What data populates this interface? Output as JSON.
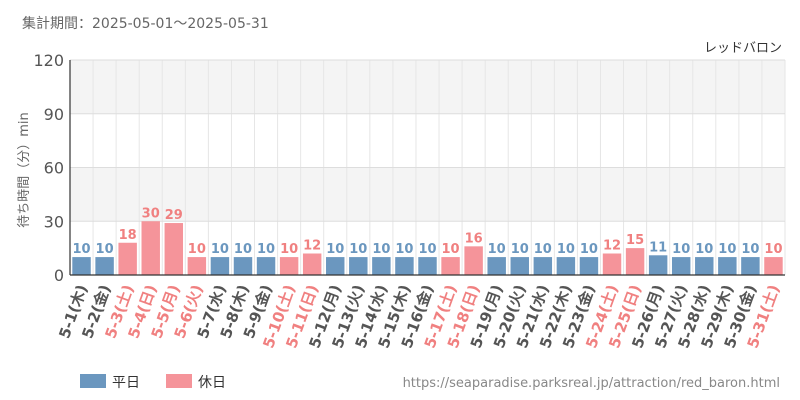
{
  "header": {
    "period_label": "集計期間：2025-05-01～2025-05-31",
    "attraction_name": "レッドバロン"
  },
  "footer": {
    "url": "https://seaparadise.parksreal.jp/attraction/red_baron.html"
  },
  "colors": {
    "weekday": "#6b97bf",
    "holiday": "#f5949a",
    "holiday_text": "#f08080",
    "weekday_text": "#6b97bf",
    "band": "#f4f4f4"
  },
  "chart_data": {
    "type": "bar",
    "title": "",
    "xlabel": "",
    "ylabel": "待ち時間（分）min",
    "ylim": [
      0,
      120
    ],
    "yticks": [
      0,
      30,
      60,
      90,
      120
    ],
    "grid": true,
    "legend_position": "bottom-left",
    "legend": [
      {
        "key": "weekday",
        "label": "平日"
      },
      {
        "key": "holiday",
        "label": "休日"
      }
    ],
    "categories": [
      "5-1(木)",
      "5-2(金)",
      "5-3(土)",
      "5-4(日)",
      "5-5(月)",
      "5-6(火)",
      "5-7(水)",
      "5-8(木)",
      "5-9(金)",
      "5-10(土)",
      "5-11(日)",
      "5-12(月)",
      "5-13(火)",
      "5-14(水)",
      "5-15(木)",
      "5-16(金)",
      "5-17(土)",
      "5-18(日)",
      "5-19(月)",
      "5-20(火)",
      "5-21(水)",
      "5-22(木)",
      "5-23(金)",
      "5-24(土)",
      "5-25(日)",
      "5-26(月)",
      "5-27(火)",
      "5-28(水)",
      "5-29(木)",
      "5-30(金)",
      "5-31(土)"
    ],
    "values": [
      10,
      10,
      18,
      30,
      29,
      10,
      10,
      10,
      10,
      10,
      12,
      10,
      10,
      10,
      10,
      10,
      10,
      16,
      10,
      10,
      10,
      10,
      10,
      12,
      15,
      11,
      10,
      10,
      10,
      10,
      10
    ],
    "day_type": [
      "weekday",
      "weekday",
      "holiday",
      "holiday",
      "holiday",
      "holiday",
      "weekday",
      "weekday",
      "weekday",
      "holiday",
      "holiday",
      "weekday",
      "weekday",
      "weekday",
      "weekday",
      "weekday",
      "holiday",
      "holiday",
      "weekday",
      "weekday",
      "weekday",
      "weekday",
      "weekday",
      "holiday",
      "holiday",
      "weekday",
      "weekday",
      "weekday",
      "weekday",
      "weekday",
      "holiday"
    ]
  }
}
